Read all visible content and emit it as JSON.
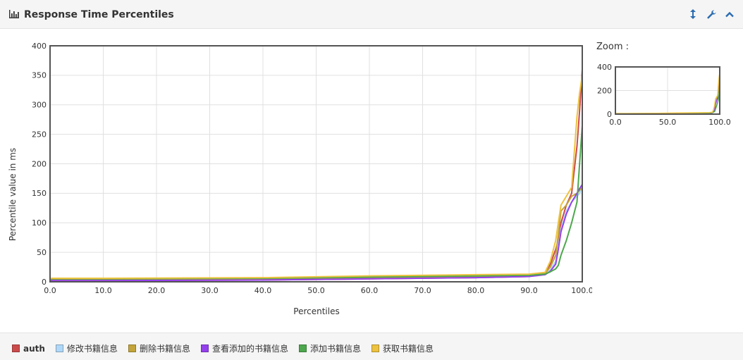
{
  "header": {
    "title": "Response Time Percentiles",
    "icons": [
      "bar-chart-icon",
      "resize-vertical-icon",
      "wrench-icon",
      "chevron-up-icon"
    ]
  },
  "zoom_label": "Zoom :",
  "colors": {
    "auth": "#cb4b4b",
    "修改书籍信息": "#afd8f8",
    "删除书籍信息": "#c2a43a",
    "查看添加的书籍信息": "#9440ed",
    "添加书籍信息": "#4da74d",
    "获取书籍信息": "#edc240"
  },
  "chart_data": [
    {
      "type": "line",
      "title": "",
      "xlabel": "Percentiles",
      "ylabel": "Percentile value in ms",
      "xlim": [
        0,
        100
      ],
      "ylim": [
        0,
        400
      ],
      "xticks": [
        "0.0",
        "10.0",
        "20.0",
        "30.0",
        "40.0",
        "50.0",
        "60.0",
        "70.0",
        "80.0",
        "90.0",
        "100.0"
      ],
      "yticks": [
        "0",
        "50",
        "100",
        "150",
        "200",
        "250",
        "300",
        "350",
        "400"
      ],
      "grid": true,
      "legend": "bottom",
      "series": [
        {
          "name": "auth",
          "color": "#cb4b4b",
          "x": [
            0,
            10,
            40,
            60,
            80,
            90,
            93,
            94,
            95,
            95.5,
            96,
            97,
            98,
            99,
            99.5,
            100
          ],
          "y": [
            2,
            2,
            3,
            5,
            7,
            9,
            15,
            30,
            55,
            70,
            100,
            130,
            150,
            230,
            290,
            360
          ]
        },
        {
          "name": "修改书籍信息",
          "color": "#afd8f8",
          "x": [
            0,
            10,
            40,
            60,
            80,
            90,
            93,
            94,
            95,
            95.5,
            96,
            97,
            98,
            99,
            99.5,
            100
          ],
          "y": [
            3,
            3,
            4,
            6,
            8,
            10,
            13,
            20,
            35,
            60,
            90,
            120,
            135,
            145,
            150,
            160
          ]
        },
        {
          "name": "删除书籍信息",
          "color": "#c2a43a",
          "x": [
            0,
            10,
            40,
            60,
            80,
            90,
            93,
            94,
            95,
            95.5,
            96,
            97,
            98,
            99,
            99.5,
            100
          ],
          "y": [
            4,
            4,
            5,
            7,
            9,
            11,
            14,
            25,
            45,
            80,
            120,
            130,
            145,
            150,
            155,
            160
          ]
        },
        {
          "name": "查看添加的书籍信息",
          "color": "#9440ed",
          "x": [
            0,
            10,
            40,
            60,
            80,
            90,
            93,
            94,
            95,
            95.5,
            96,
            97,
            98,
            99,
            99.5,
            100
          ],
          "y": [
            2,
            2,
            3,
            5,
            7,
            9,
            12,
            18,
            30,
            55,
            85,
            115,
            135,
            150,
            158,
            165
          ]
        },
        {
          "name": "添加书籍信息",
          "color": "#4da74d",
          "x": [
            0,
            10,
            40,
            60,
            80,
            90,
            93,
            94,
            95,
            95.5,
            96,
            97,
            98,
            99,
            99.5,
            100
          ],
          "y": [
            5,
            5,
            6,
            8,
            10,
            11,
            13,
            17,
            22,
            28,
            45,
            70,
            100,
            135,
            200,
            265
          ]
        },
        {
          "name": "获取书籍信息",
          "color": "#edc240",
          "x": [
            0,
            10,
            40,
            60,
            80,
            90,
            93,
            94,
            95,
            95.5,
            96,
            97,
            98,
            99,
            99.5,
            100
          ],
          "y": [
            6,
            6,
            7,
            10,
            12,
            13,
            16,
            35,
            70,
            100,
            130,
            145,
            160,
            280,
            320,
            350
          ]
        }
      ]
    },
    {
      "type": "line",
      "title": "",
      "xlabel": "",
      "ylabel": "",
      "xlim": [
        0,
        100
      ],
      "ylim": [
        0,
        400
      ],
      "xticks": [
        "0.0",
        "50.0",
        "100.0"
      ],
      "yticks": [
        "0",
        "200",
        "400"
      ],
      "grid": true,
      "legend": "none"
    }
  ]
}
